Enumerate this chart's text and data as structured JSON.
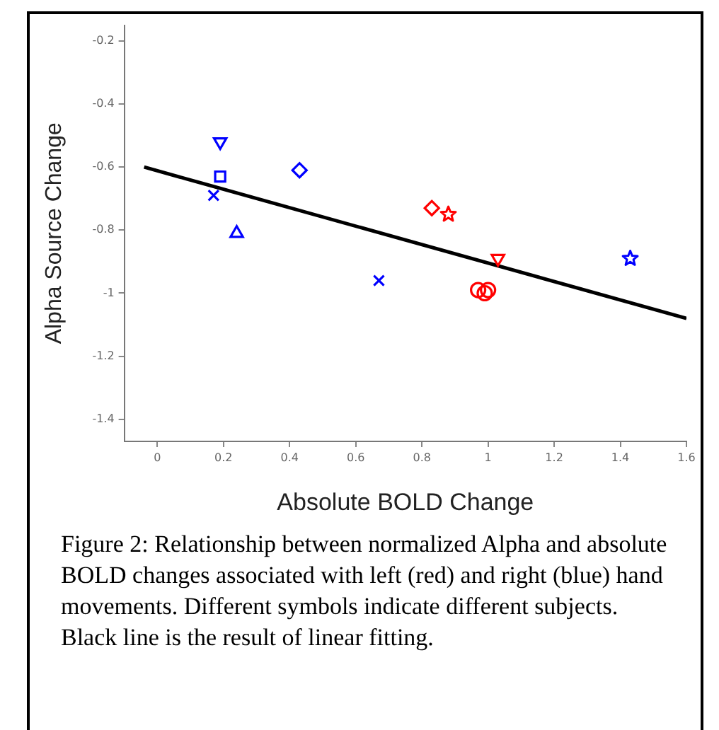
{
  "chart_data": {
    "type": "scatter",
    "xlabel": "Absolute BOLD Change",
    "ylabel": "Alpha Source Change",
    "xlim": [
      -0.1,
      1.6
    ],
    "xticks": [
      0,
      0.2,
      0.4,
      0.6,
      0.8,
      1,
      1.2,
      1.4,
      1.6
    ],
    "ylim": [
      -1.47,
      -0.15
    ],
    "yticks": [
      -1.4,
      -1.2,
      -1,
      -0.8,
      -0.6,
      -0.4,
      -0.2
    ],
    "grid": false,
    "legend": false,
    "series": [
      {
        "color": "#0000ff",
        "marker": "triangle-down",
        "x": [
          0.19
        ],
        "values": [
          -0.52
        ]
      },
      {
        "color": "#0000ff",
        "marker": "square",
        "x": [
          0.19
        ],
        "values": [
          -0.63
        ]
      },
      {
        "color": "#0000ff",
        "marker": "cross",
        "x": [
          0.17
        ],
        "values": [
          -0.69
        ]
      },
      {
        "color": "#0000ff",
        "marker": "triangle",
        "x": [
          0.24
        ],
        "values": [
          -0.81
        ]
      },
      {
        "color": "#0000ff",
        "marker": "diamond",
        "x": [
          0.43
        ],
        "values": [
          -0.61
        ]
      },
      {
        "color": "#0000ff",
        "marker": "cross",
        "x": [
          0.67
        ],
        "values": [
          -0.96
        ]
      },
      {
        "color": "#0000ff",
        "marker": "star",
        "x": [
          1.43
        ],
        "values": [
          -0.89
        ]
      },
      {
        "color": "#ff0000",
        "marker": "diamond",
        "x": [
          0.83
        ],
        "values": [
          -0.73
        ]
      },
      {
        "color": "#ff0000",
        "marker": "star",
        "x": [
          0.88
        ],
        "values": [
          -0.75
        ]
      },
      {
        "color": "#ff0000",
        "marker": "triangle-down",
        "x": [
          1.03
        ],
        "values": [
          -0.89
        ]
      },
      {
        "color": "#ff0000",
        "marker": "circle",
        "x": [
          0.97,
          0.99,
          1.0
        ],
        "values": [
          -0.99,
          -1.0,
          -0.99
        ]
      },
      {
        "type": "line",
        "color": "#000000",
        "marker": "none",
        "x": [
          -0.04,
          1.6
        ],
        "values": [
          -0.6,
          -1.08
        ]
      }
    ],
    "annotations": [
      "Figure 2: Relationship between normalized Alpha and absolute BOLD changes associated with left (red) and right (blue) hand movements. Different symbols indicate different subjects. Black line is the result of linear fitting."
    ]
  }
}
